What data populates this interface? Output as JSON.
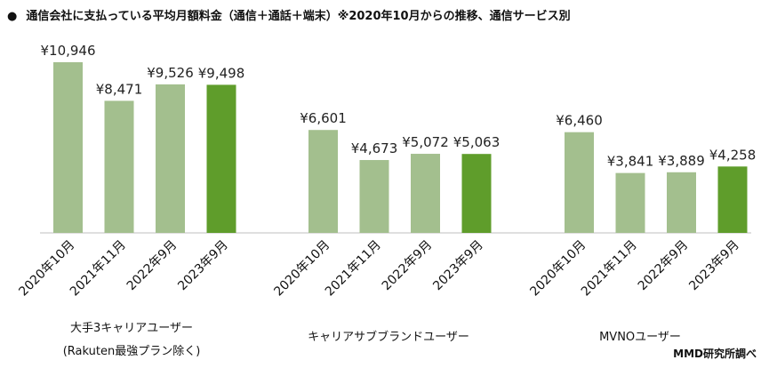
{
  "title": "通信会社に支払っている平均月額料金（通信＋通話＋端末）※2020年10月からの推移、通信サービス別",
  "title_bullet": "●",
  "source": "MMD研究所調べ",
  "chart_data": {
    "type": "bar",
    "title": "通信会社に支払っている平均月額料金（通信＋通話＋端末）※2020年10月からの推移、通信サービス別",
    "grid": false,
    "colors": {
      "past": "#a3bf8e",
      "latest": "#5f9d2b"
    },
    "value_prefix": "¥",
    "groups": [
      {
        "label_lines": [
          "大手3キャリアユーザー",
          "(Rakuten最強プラン除く)"
        ],
        "categories": [
          "2020年10月",
          "2021年11月",
          "2022年9月",
          "2023年9月"
        ],
        "values": [
          10946,
          8471,
          9526,
          9498
        ],
        "labels": [
          "¥10,946",
          "¥8,471",
          "¥9,526",
          "¥9,498"
        ]
      },
      {
        "label_lines": [
          "キャリアサブブランドユーザー"
        ],
        "categories": [
          "2020年10月",
          "2021年11月",
          "2022年9月",
          "2023年9月"
        ],
        "values": [
          6601,
          4673,
          5072,
          5063
        ],
        "labels": [
          "¥6,601",
          "¥4,673",
          "¥5,072",
          "¥5,063"
        ]
      },
      {
        "label_lines": [
          "MVNOユーザー"
        ],
        "categories": [
          "2020年10月",
          "2021年11月",
          "2022年9月",
          "2023年9月"
        ],
        "values": [
          6460,
          3841,
          3889,
          4258
        ],
        "labels": [
          "¥6,460",
          "¥3,841",
          "¥3,889",
          "¥4,258"
        ]
      }
    ]
  }
}
